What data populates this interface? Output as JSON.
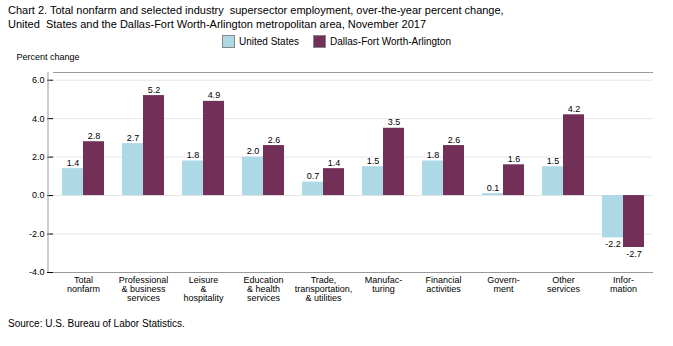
{
  "chart_data": {
    "type": "bar",
    "title": "Chart 2. Total nonfarm and selected industry  supersector employment, over-the-year percent change,\nUnited  States and the Dallas-Fort Worth-Arlington metropolitan area, November 2017",
    "ylabel": "Percent change",
    "source": "Source: U.S. Bureau of Labor Statistics.",
    "categories": [
      "Total\nnonfarm",
      "Professional\n& business\nservices",
      "Leisure\n&\nhospitality",
      "Education\n& health\nservices",
      "Trade,\ntransportation,\n& utilities",
      "Manufac-\nturing",
      "Financial\nactivities",
      "Govern-\nment",
      "Other\nservices",
      "Infor-\nmation"
    ],
    "series": [
      {
        "name": "United States",
        "color": "#add8e6",
        "values": [
          1.4,
          2.7,
          1.8,
          2.0,
          0.7,
          1.5,
          1.8,
          0.1,
          1.5,
          -2.2
        ],
        "value_labels": [
          "1.4",
          "2.7",
          "1.8",
          "2.0",
          "0.7",
          "1.5",
          "1.8",
          "0.1",
          "1.5",
          "-2.2"
        ]
      },
      {
        "name": "Dallas-Fort Worth-Arlington",
        "color": "#722f57",
        "values": [
          2.8,
          5.2,
          4.9,
          2.6,
          1.4,
          3.5,
          2.6,
          1.6,
          4.2,
          -2.7
        ],
        "value_labels": [
          "2.8",
          "5.2",
          "4.9",
          "2.6",
          "1.4",
          "3.5",
          "2.6",
          "1.6",
          "4.2",
          "-2.7"
        ]
      }
    ],
    "ylim": [
      -4.0,
      6.4
    ],
    "yticks": [
      {
        "value": -4.0,
        "label": "-4.0"
      },
      {
        "value": -2.0,
        "label": "-2.0"
      },
      {
        "value": 0.0,
        "label": "0.0"
      },
      {
        "value": 2.0,
        "label": "2.0"
      },
      {
        "value": 4.0,
        "label": "4.0"
      },
      {
        "value": 6.0,
        "label": "6.0"
      }
    ],
    "grid": true,
    "legend": "upper center",
    "data_labels": true
  }
}
